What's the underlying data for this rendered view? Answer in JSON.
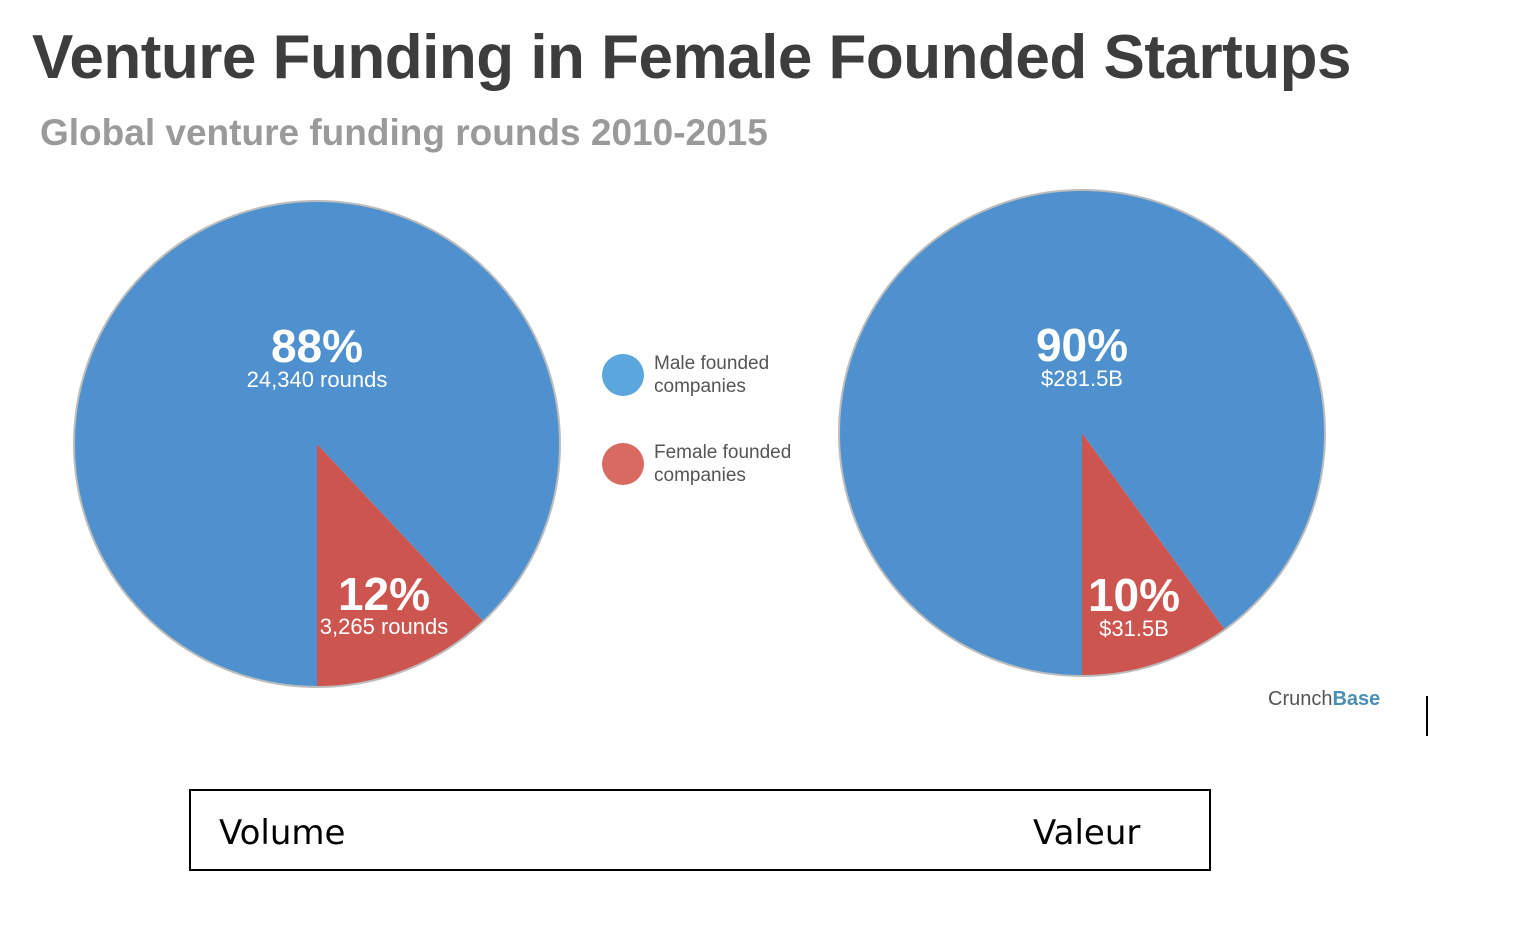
{
  "chart_data": [
    {
      "type": "pie",
      "title": "Venture Funding in Female Founded Startups",
      "subtitle": "Global venture funding rounds 2010-2015",
      "categories": [
        "Male founded companies",
        "Female founded companies"
      ],
      "values": [
        88,
        12
      ],
      "labels": [
        {
          "percent": "88%",
          "detail": "24,340 rounds"
        },
        {
          "percent": "12%",
          "detail": "3,265 rounds"
        }
      ],
      "caption": "Volume"
    },
    {
      "type": "pie",
      "categories": [
        "Male founded companies",
        "Female founded companies"
      ],
      "values": [
        90,
        10
      ],
      "labels": [
        {
          "percent": "90%",
          "detail": "$281.5B"
        },
        {
          "percent": "10%",
          "detail": "$31.5B"
        }
      ],
      "caption": "Valeur"
    }
  ],
  "header": {
    "title": "Venture Funding in Female Founded Startups",
    "subtitle": "Global venture funding rounds 2010-2015"
  },
  "legend": {
    "placement": "center",
    "items": [
      {
        "label": "Male founded companies",
        "color": "#5ba6dc"
      },
      {
        "label": "Female founded companies",
        "color": "#d86a62"
      }
    ]
  },
  "colors": {
    "male": "#4f91ce",
    "female": "#cd5550",
    "outline": "#bcbcbc"
  },
  "source": {
    "prefix": "Crunch",
    "accent": "Base"
  },
  "captions": {
    "left": "Volume",
    "right": "Valeur"
  }
}
